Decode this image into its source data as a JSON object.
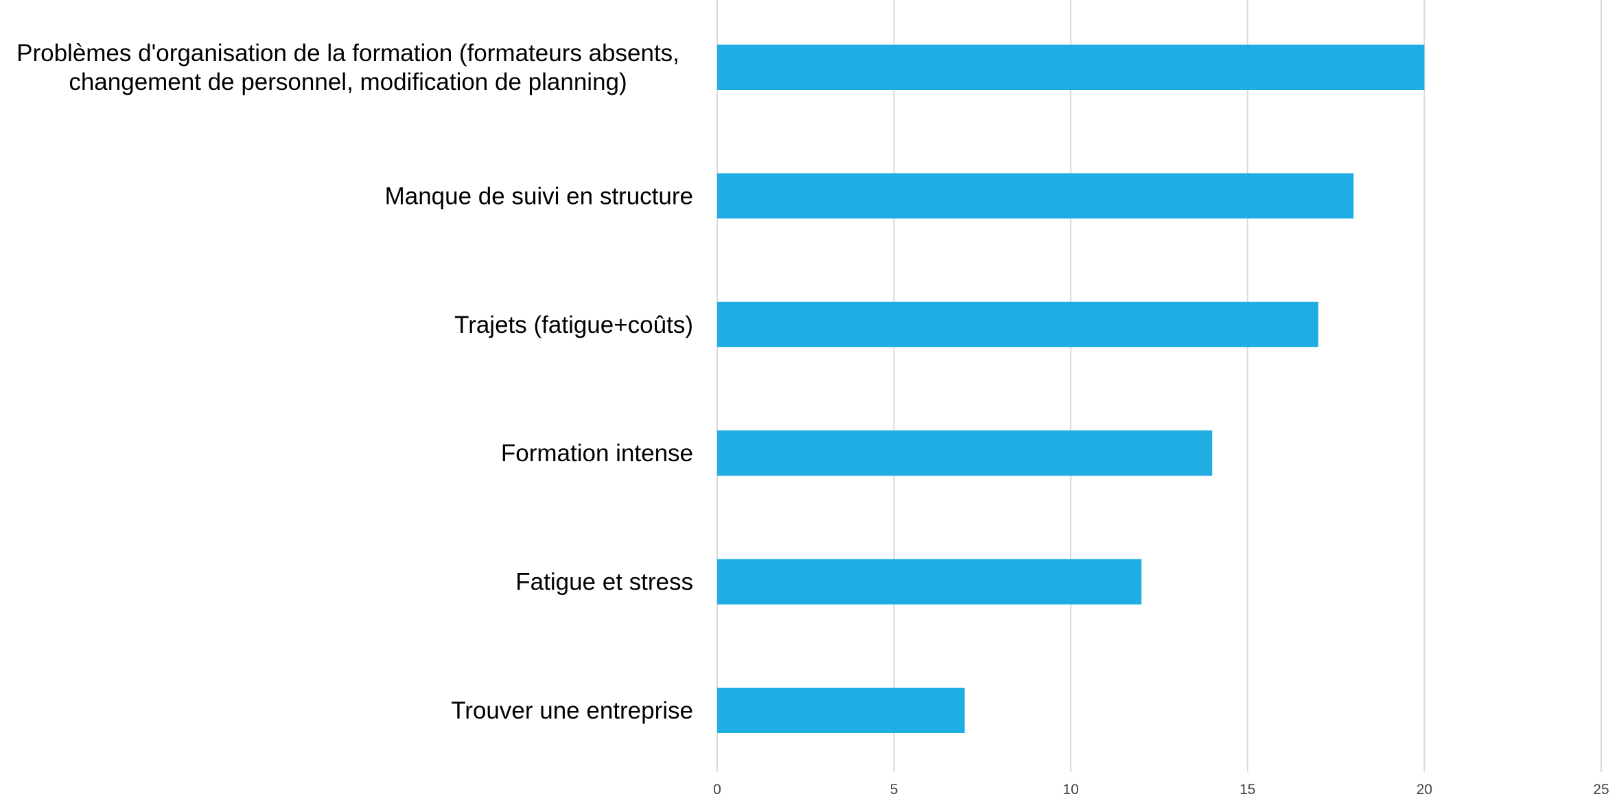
{
  "chart_data": {
    "type": "bar",
    "orientation": "horizontal",
    "title": "",
    "xlabel": "",
    "ylabel": "",
    "categories": [
      [
        "Problèmes d'organisation de la formation (formateurs absents,",
        "changement de personnel, modification de planning)"
      ],
      [
        "Manque de suivi en structure"
      ],
      [
        "Trajets (fatigue+coûts)"
      ],
      [
        "Formation intense"
      ],
      [
        "Fatigue et stress"
      ],
      [
        "Trouver une entreprise"
      ]
    ],
    "values": [
      20,
      18,
      17,
      14,
      12,
      7
    ],
    "xlim": [
      0,
      25
    ],
    "xticks": [
      "0",
      "5",
      "10",
      "15",
      "20",
      "25"
    ],
    "grid": "vertical",
    "legend": "none",
    "bar_color": "#1FADE4"
  }
}
